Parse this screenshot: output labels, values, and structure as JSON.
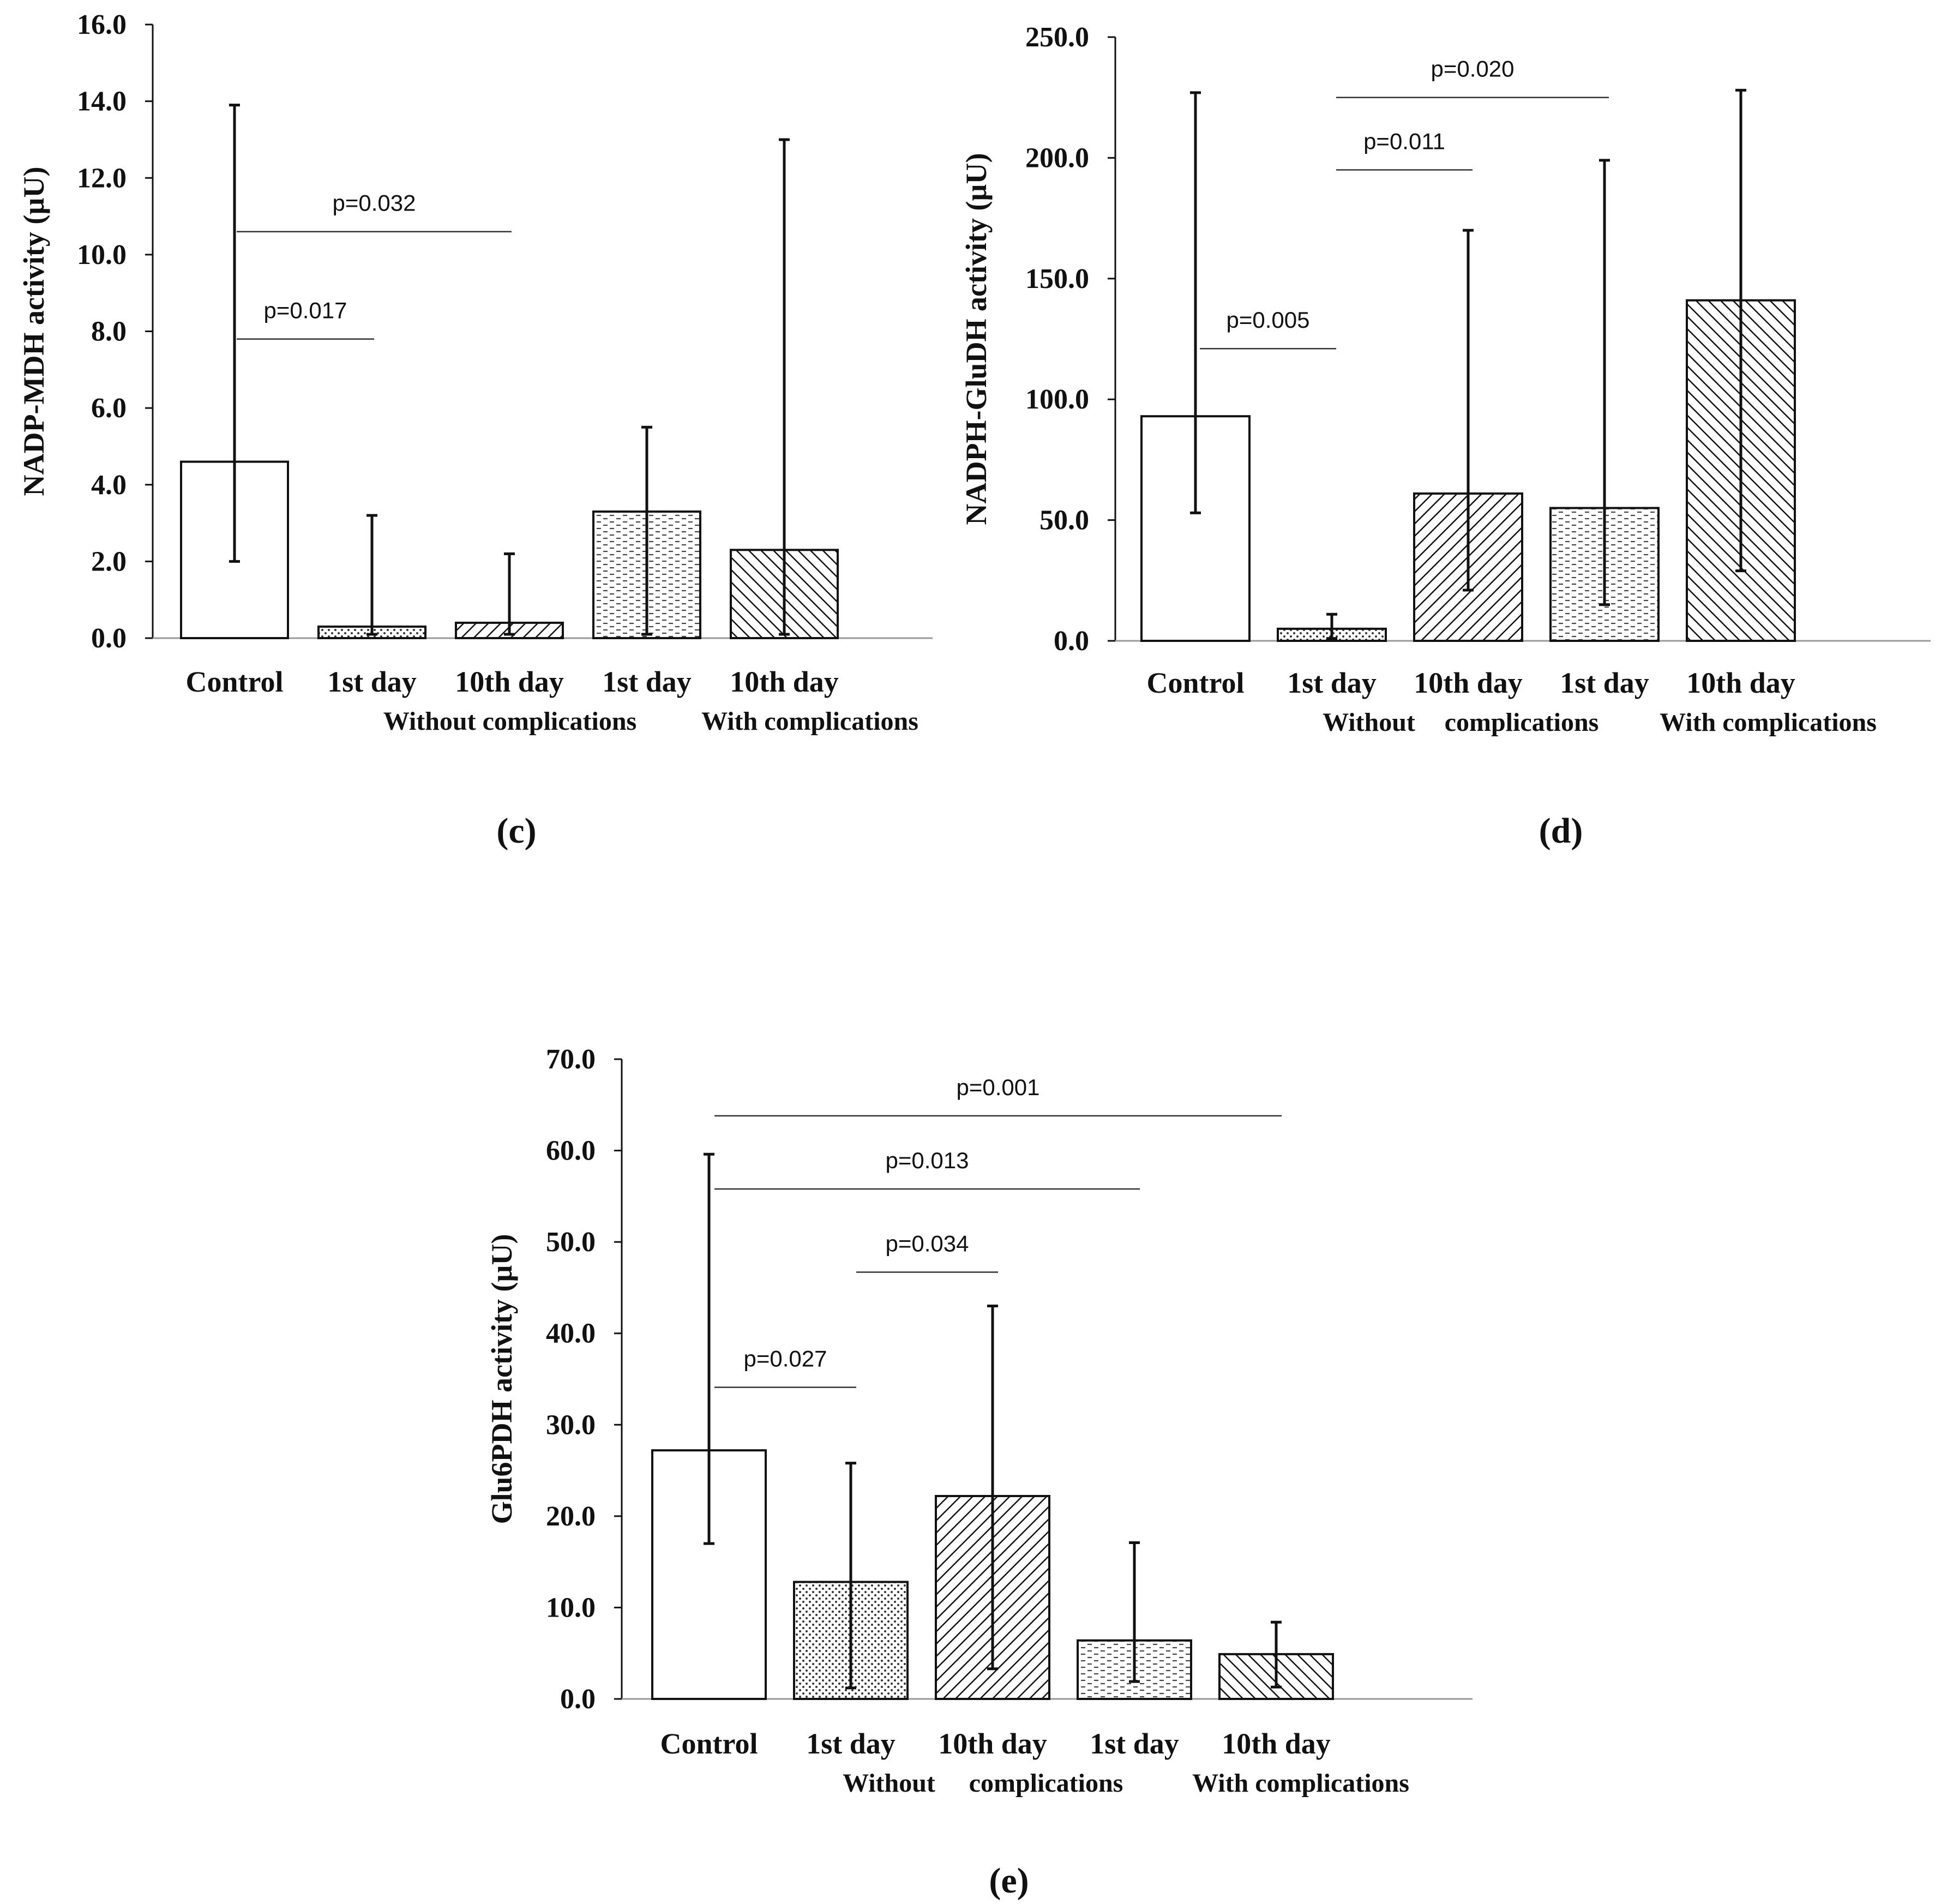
{
  "colors": {
    "ink": "#111111",
    "axis": "#999999",
    "sig_line": "#333333",
    "bar_fill_plain": "#ffffff"
  },
  "chart_data": [
    {
      "type": "bar",
      "panel": "(c)",
      "ylabel": "NADP-MDH activity (µU)",
      "ylim": [
        0,
        16
      ],
      "yticks": [
        "0.0",
        "2.0",
        "4.0",
        "6.0",
        "8.0",
        "10.0",
        "12.0",
        "14.0",
        "16.0"
      ],
      "categories": [
        "Control",
        "1st day",
        "10th day",
        "1st day",
        "10th day"
      ],
      "groups": [
        {
          "label": "Without complications",
          "from": 1,
          "to": 2
        },
        {
          "label": "With complications",
          "from": 3,
          "to": 4
        }
      ],
      "values": [
        4.6,
        0.3,
        0.4,
        3.3,
        2.3
      ],
      "error_low": [
        2.0,
        0.1,
        0.1,
        0.1,
        0.1
      ],
      "error_high": [
        13.9,
        3.2,
        2.2,
        5.5,
        13.0
      ],
      "patterns": [
        "none",
        "dots",
        "diag-back",
        "dashes",
        "diag-fwd"
      ],
      "significance": [
        {
          "label": "p=0.032",
          "from": 0,
          "to": 2,
          "y": 10.6
        },
        {
          "label": "p=0.017",
          "from": 0,
          "to": 1,
          "y": 7.8
        }
      ]
    },
    {
      "type": "bar",
      "panel": "(d)",
      "ylabel": "NADPH-GluDH activity (µU)",
      "ylim": [
        0,
        250
      ],
      "yticks": [
        "0.0",
        "50.0",
        "100.0",
        "150.0",
        "200.0",
        "250.0"
      ],
      "categories": [
        "Control",
        "1st day",
        "10th day",
        "1st day",
        "10th day"
      ],
      "groups": [
        {
          "label": "Without",
          "from": 1,
          "to": 1
        },
        {
          "label": "complications",
          "from": 2,
          "to": 2
        },
        {
          "label": "With complications",
          "from": 3,
          "to": 4
        }
      ],
      "values": [
        93,
        5,
        61,
        55,
        141
      ],
      "error_low": [
        53,
        1,
        21,
        15,
        29
      ],
      "error_high": [
        227,
        11,
        170,
        199,
        228
      ],
      "patterns": [
        "none",
        "dots",
        "diag-back",
        "dashes",
        "diag-fwd"
      ],
      "significance": [
        {
          "label": "p=0.020",
          "from": 1,
          "to": 3,
          "y": 225
        },
        {
          "label": "p=0.011",
          "from": 1,
          "to": 2,
          "y": 195
        },
        {
          "label": "p=0.005",
          "from": 0,
          "to": 1,
          "y": 121
        }
      ]
    },
    {
      "type": "bar",
      "panel": "(e)",
      "ylabel": "Glu6PDH activity (µU)",
      "ylim": [
        0,
        70
      ],
      "yticks": [
        "0.0",
        "10.0",
        "20.0",
        "30.0",
        "40.0",
        "50.0",
        "60.0",
        "70.0"
      ],
      "categories": [
        "Control",
        "1st day",
        "10th day",
        "1st day",
        "10th day"
      ],
      "groups": [
        {
          "label": "Without",
          "from": 1,
          "to": 1
        },
        {
          "label": "complications",
          "from": 2,
          "to": 2
        },
        {
          "label": "With complications",
          "from": 3,
          "to": 4
        }
      ],
      "values": [
        27.2,
        12.8,
        22.2,
        6.4,
        4.9
      ],
      "error_low": [
        17.0,
        1.2,
        3.3,
        1.9,
        1.3
      ],
      "error_high": [
        59.6,
        25.8,
        43.0,
        17.1,
        8.4
      ],
      "patterns": [
        "none",
        "dots",
        "diag-back",
        "dashes",
        "diag-fwd"
      ],
      "significance": [
        {
          "label": "p=0.001",
          "from": 0,
          "to": 4,
          "y": 63.8
        },
        {
          "label": "p=0.013",
          "from": 0,
          "to": 3,
          "y": 55.8
        },
        {
          "label": "p=0.034",
          "from": 1,
          "to": 2,
          "y": 46.7
        },
        {
          "label": "p=0.027",
          "from": 0,
          "to": 1,
          "y": 34.1
        }
      ]
    }
  ]
}
